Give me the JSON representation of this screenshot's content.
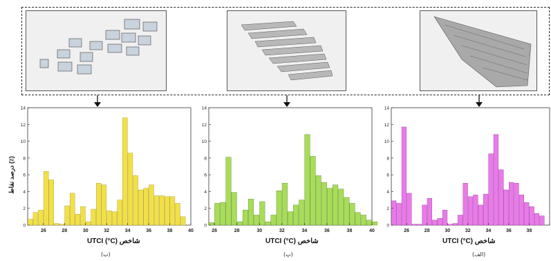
{
  "figure": {
    "panel_labels": [
      "(ب)",
      "(پ)",
      "(الف)"
    ],
    "x_label_left": "شاخص",
    "x_label_right": "UTCI (°C)",
    "y_label": "درصد نقاط (٪)"
  },
  "chart_data": [
    {
      "type": "bar",
      "color": "#f1e04a",
      "stroke": "#a89a2a",
      "x_start": 24.5,
      "bin": 0.5,
      "xlim": [
        24.5,
        40
      ],
      "ylim": [
        0,
        14
      ],
      "xticks": [
        26,
        28,
        30,
        32,
        34,
        36,
        38,
        40
      ],
      "yticks": [
        0,
        2,
        4,
        6,
        8,
        10,
        12,
        14
      ],
      "values": [
        0.7,
        1.5,
        1.8,
        6.4,
        5.4,
        0.2,
        0.1,
        2.3,
        3.8,
        1.3,
        2.2,
        0.4,
        1.9,
        5.0,
        4.8,
        1.7,
        1.6,
        3.0,
        12.8,
        8.6,
        5.9,
        4.2,
        4.4,
        4.8,
        3.5,
        3.5,
        3.4,
        3.4,
        2.6,
        1.0
      ]
    },
    {
      "type": "bar",
      "color": "#a8dc5a",
      "stroke": "#5a8a2a",
      "x_start": 25.5,
      "bin": 0.5,
      "xlim": [
        25.5,
        40
      ],
      "ylim": [
        0,
        14
      ],
      "xticks": [
        26,
        28,
        30,
        32,
        34,
        36,
        38,
        40
      ],
      "yticks": [
        0,
        2,
        4,
        6,
        8,
        10,
        12,
        14
      ],
      "values": [
        0.3,
        2.6,
        2.7,
        8.1,
        3.9,
        0.4,
        1.8,
        3.1,
        1.2,
        2.8,
        0.4,
        1.2,
        4.1,
        5.0,
        1.6,
        2.4,
        3.0,
        10.8,
        8.2,
        5.9,
        5.1,
        4.4,
        4.8,
        4.3,
        3.3,
        2.6,
        1.5,
        1.2,
        0.6,
        0.4
      ]
    },
    {
      "type": "bar",
      "color": "#e87be8",
      "stroke": "#a03aa0",
      "x_start": 24.5,
      "bin": 0.5,
      "xlim": [
        24.5,
        40
      ],
      "ylim": [
        0,
        14
      ],
      "xticks": [
        26,
        28,
        30,
        32,
        34,
        36,
        38,
        40
      ],
      "yticks": [
        0,
        2,
        4,
        6,
        8,
        10,
        12,
        14
      ],
      "values": [
        2.9,
        2.6,
        11.7,
        3.8,
        0.1,
        0.1,
        2.4,
        3.2,
        0.6,
        0.8,
        1.8,
        0.1,
        0.2,
        1.2,
        5.0,
        3.4,
        3.6,
        2.4,
        3.7,
        8.5,
        10.8,
        6.6,
        4.2,
        5.1,
        5.0,
        3.6,
        2.7,
        2.2,
        1.4,
        1.1
      ]
    }
  ]
}
